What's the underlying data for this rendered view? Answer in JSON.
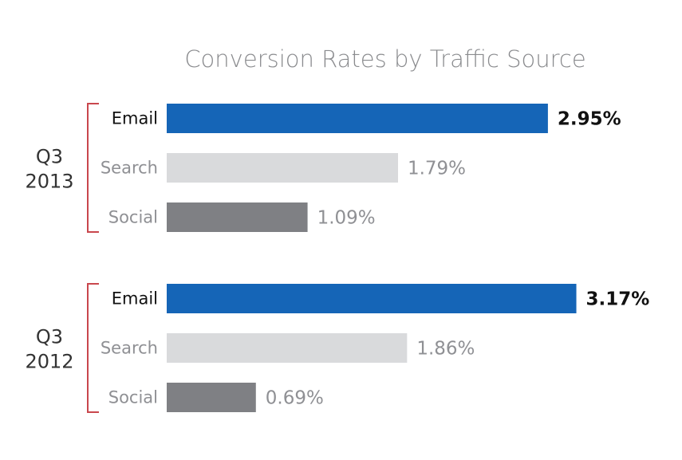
{
  "chart_data": {
    "type": "bar",
    "orientation": "horizontal",
    "title": "Conversion Rates by Traffic Source",
    "unit": "%",
    "xlim": [
      0,
      3.3
    ],
    "grid": false,
    "groups": [
      {
        "label_line1": "Q3",
        "label_line2": "2013",
        "bars": [
          {
            "category": "Email",
            "value": 2.95,
            "label": "2.95%",
            "highlight": true
          },
          {
            "category": "Search",
            "value": 1.79,
            "label": "1.79%",
            "highlight": false
          },
          {
            "category": "Social",
            "value": 1.09,
            "label": "1.09%",
            "highlight": false
          }
        ]
      },
      {
        "label_line1": "Q3",
        "label_line2": "2012",
        "bars": [
          {
            "category": "Email",
            "value": 3.17,
            "label": "3.17%",
            "highlight": true
          },
          {
            "category": "Search",
            "value": 1.86,
            "label": "1.86%",
            "highlight": false
          },
          {
            "category": "Social",
            "value": 0.69,
            "label": "0.69%",
            "highlight": false
          }
        ]
      }
    ],
    "colors": {
      "Email": "#1565b7",
      "Search": "#d9dadc",
      "Social": "#7f8084",
      "bracket": "#c9474d"
    }
  }
}
